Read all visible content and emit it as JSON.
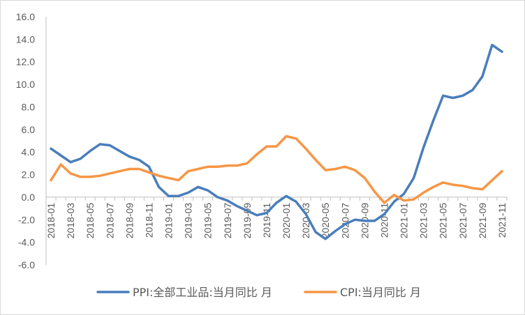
{
  "chart_data": {
    "type": "line",
    "title": "",
    "xlabel": "",
    "ylabel": "",
    "ylim": [
      -6.0,
      16.0
    ],
    "yticks": [
      "16.0",
      "14.0",
      "12.0",
      "10.0",
      "8.0",
      "6.0",
      "4.0",
      "2.0",
      "0.0",
      "-2.0",
      "-4.0",
      "-6.0"
    ],
    "xticks": [
      "2018-01",
      "2018-03",
      "2018-05",
      "2018-07",
      "2018-09",
      "2018-11",
      "2019-01",
      "2019-03",
      "2019-05",
      "2019-07",
      "2019-09",
      "2019-11",
      "2020-01",
      "2020-03",
      "2020-05",
      "2020-07",
      "2020-09",
      "2020-11",
      "2021-01",
      "2021-03",
      "2021-05",
      "2021-07",
      "2021-09",
      "2021-11"
    ],
    "legend_position": "bottom",
    "grid": false,
    "series": [
      {
        "name": "PPI:全部工业品:当月同比 月",
        "color": "#4a7ebb",
        "values": [
          4.3,
          3.7,
          3.1,
          3.4,
          4.1,
          4.7,
          4.6,
          4.1,
          3.6,
          3.3,
          2.7,
          0.9,
          0.1,
          0.1,
          0.4,
          0.9,
          0.6,
          0.0,
          -0.3,
          -0.8,
          -1.2,
          -1.6,
          -1.4,
          -0.5,
          0.1,
          -0.4,
          -1.5,
          -3.1,
          -3.7,
          -3.0,
          -2.4,
          -2.0,
          -2.1,
          -2.1,
          -1.5,
          -0.4,
          0.3,
          1.7,
          4.4,
          6.8,
          9.0,
          8.8,
          9.0,
          9.5,
          10.7,
          13.5,
          12.9
        ]
      },
      {
        "name": "CPI:当月同比 月",
        "color": "#f79646",
        "values": [
          1.5,
          2.9,
          2.1,
          1.8,
          1.8,
          1.9,
          2.1,
          2.3,
          2.5,
          2.5,
          2.2,
          1.9,
          1.7,
          1.5,
          2.3,
          2.5,
          2.7,
          2.7,
          2.8,
          2.8,
          3.0,
          3.8,
          4.5,
          4.5,
          5.4,
          5.2,
          4.3,
          3.3,
          2.4,
          2.5,
          2.7,
          2.4,
          1.7,
          0.5,
          -0.5,
          0.2,
          -0.3,
          -0.2,
          0.4,
          0.9,
          1.3,
          1.1,
          1.0,
          0.8,
          0.7,
          1.5,
          2.3
        ]
      }
    ]
  }
}
